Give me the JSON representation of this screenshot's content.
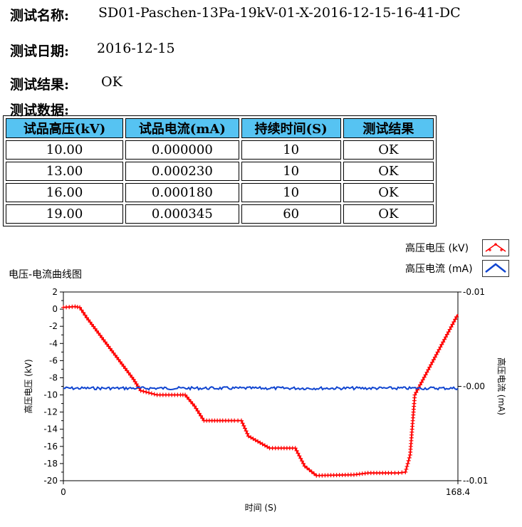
{
  "info": {
    "name_label": "测试名称:",
    "name_value": "SD01-Paschen-13Pa-19kV-01-X-2016-12-15-16-41-DC",
    "date_label": "测试日期:",
    "date_value": "2016-12-15",
    "result_label": "测试结果:",
    "result_value": "OK",
    "data_label": "测试数据:"
  },
  "table": {
    "headers": [
      "试品高压(kV)",
      "试品电流(mA)",
      "持续时间(S)",
      "测试结果"
    ],
    "rows": [
      [
        "10.00",
        "0.000000",
        "10",
        "OK"
      ],
      [
        "13.00",
        "0.000230",
        "10",
        "OK"
      ],
      [
        "16.00",
        "0.000180",
        "10",
        "OK"
      ],
      [
        "19.00",
        "0.000345",
        "60",
        "OK"
      ]
    ]
  },
  "chart_data": {
    "type": "line",
    "title": "电压-电流曲线图",
    "xlabel": "时间 (S)",
    "ylabel": "高压电压 (kV)",
    "y2label": "高压电流 (mA)",
    "xlim": [
      0,
      168.4
    ],
    "x_ticks": [
      "0",
      "168.4"
    ],
    "ylim": [
      -20,
      2
    ],
    "y_ticks": [
      2,
      0,
      -2,
      -4,
      -6,
      -8,
      -10,
      -12,
      -14,
      -16,
      -18,
      -20
    ],
    "y2lim": [
      -0.01,
      0.01
    ],
    "y2_ticks": [
      "0.01",
      "0.00",
      "-0.01"
    ],
    "grid": false,
    "legend_position": "top-right",
    "series": [
      {
        "name": "高压电压 (kV)",
        "axis": "left",
        "color": "#ff0000",
        "marker": "plus",
        "x": [
          0,
          5,
          7,
          10,
          20,
          30,
          33,
          40,
          50,
          52,
          56,
          60,
          68,
          73,
          76,
          79,
          88,
          93,
          99,
          103,
          108,
          124,
          130,
          140,
          143,
          146,
          148,
          150,
          168.4
        ],
        "y": [
          0.2,
          0.3,
          0.2,
          -1,
          -4.6,
          -8.2,
          -9.5,
          -10,
          -10,
          -10,
          -11.3,
          -13,
          -13,
          -13,
          -13,
          -14.8,
          -16.2,
          -16.2,
          -16.2,
          -18.3,
          -19.4,
          -19.3,
          -19.1,
          -19.1,
          -19.1,
          -19,
          -17,
          -10,
          -0.6
        ]
      },
      {
        "name": "高压电流 (mA)",
        "axis": "right",
        "color": "#1045d0",
        "marker": "none",
        "x": [
          0,
          168.4
        ],
        "y": [
          -0.0002,
          -0.0002
        ]
      }
    ]
  }
}
